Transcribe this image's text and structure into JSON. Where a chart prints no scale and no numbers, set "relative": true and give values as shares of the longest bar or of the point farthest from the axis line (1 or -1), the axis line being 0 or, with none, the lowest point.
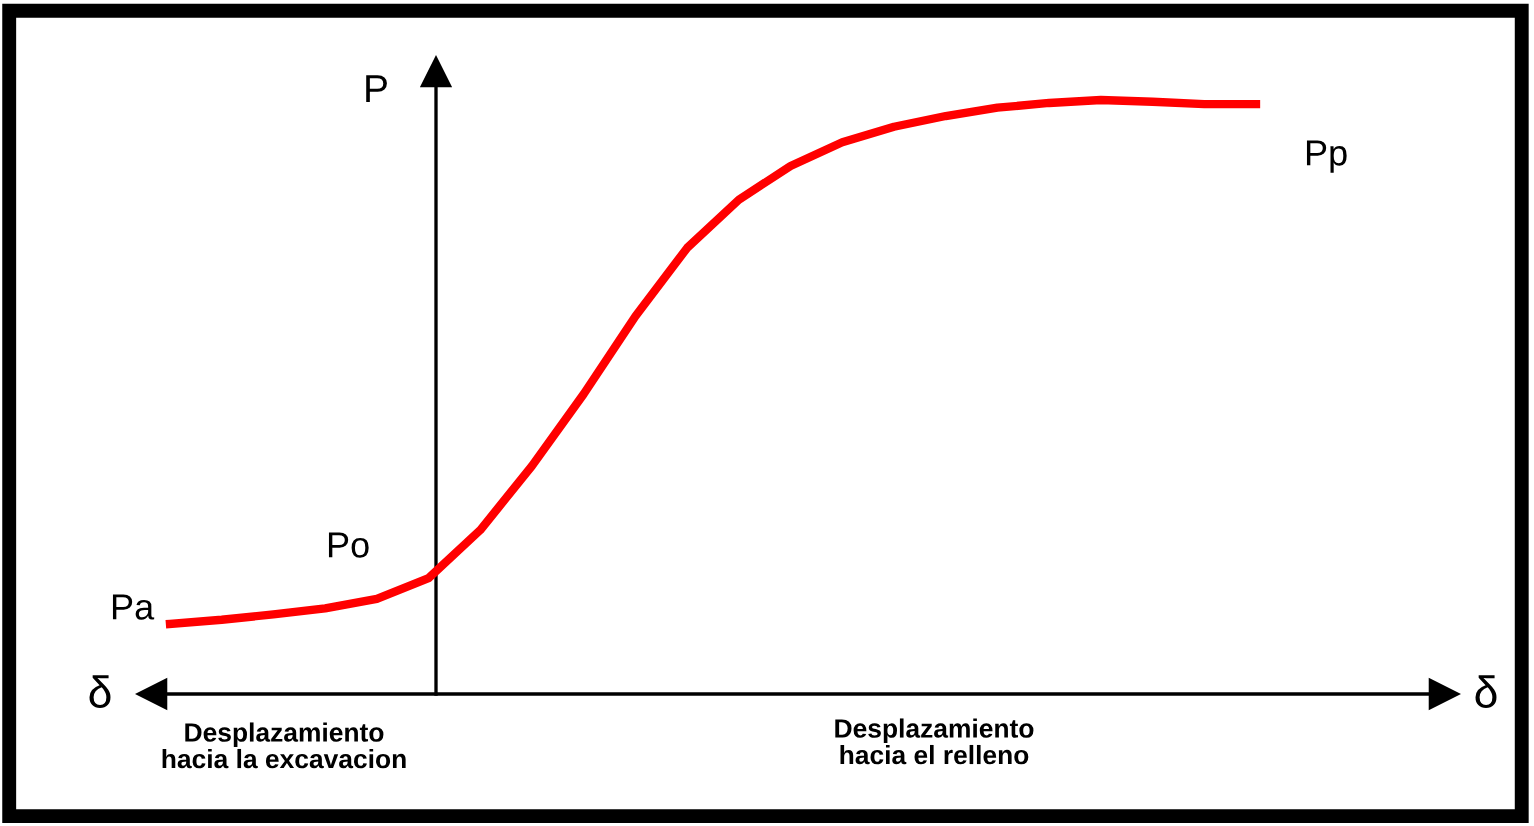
{
  "chart_data": {
    "type": "line",
    "relative": true,
    "categories": [
      null,
      null,
      null,
      null,
      null,
      null,
      null,
      null,
      null,
      null,
      null,
      null,
      null,
      null,
      null,
      null,
      null,
      null,
      null,
      null,
      null,
      null
    ],
    "series": [
      {
        "color": "#ff0000",
        "values": [
          0.118,
          0.125,
          0.134,
          0.144,
          0.16,
          0.195,
          0.276,
          0.384,
          0.505,
          0.636,
          0.751,
          0.832,
          0.889,
          0.929,
          0.955,
          0.973,
          0.987,
          0.995,
          1.0,
          0.997,
          0.993,
          0.993
        ]
      }
    ],
    "ylabel": "P",
    "xlabel": "δ",
    "annotations": [
      "Pa",
      "Po",
      "Pp",
      "δ",
      "Desplazamiento\nhacia la excavacion",
      "Desplazamiento\nhacia el relleno"
    ],
    "marker": "none",
    "line_style": "solid"
  }
}
